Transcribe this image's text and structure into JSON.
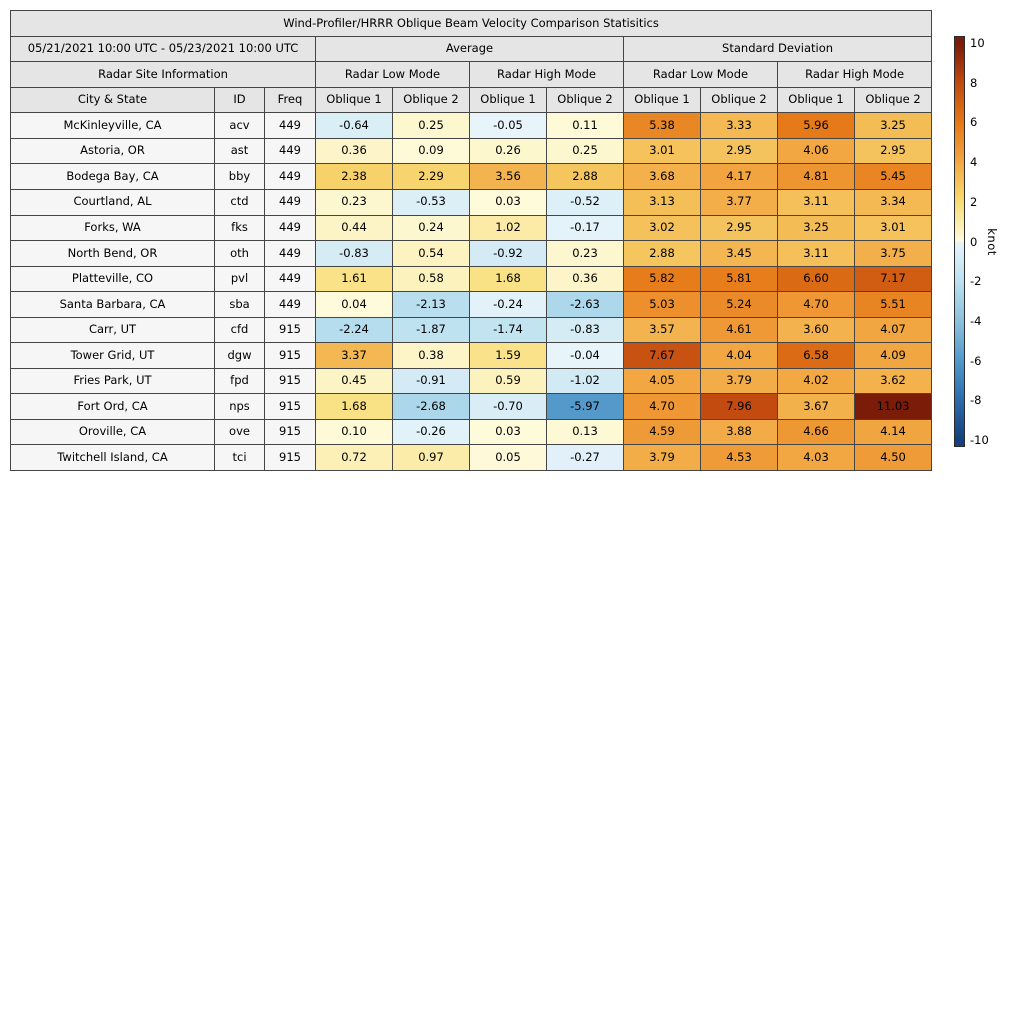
{
  "title": "Wind-Profiler/HRRR Oblique Beam Velocity Comparison Statisitics",
  "header": {
    "date_range": "05/21/2021 10:00 UTC - 05/23/2021 10:00 UTC",
    "group_average": "Average",
    "group_std": "Standard Deviation",
    "radar_site_info": "Radar Site Information",
    "mode_headers": [
      "Radar Low Mode",
      "Radar High Mode",
      "Radar Low Mode",
      "Radar High Mode"
    ],
    "col_headers": [
      "City & State",
      "ID",
      "Freq",
      "Oblique 1",
      "Oblique 2",
      "Oblique 1",
      "Oblique 2",
      "Oblique 1",
      "Oblique 2",
      "Oblique 1",
      "Oblique 2"
    ]
  },
  "chart_data": {
    "type": "heatmap",
    "title": "Wind-Profiler/HRRR Oblique Beam Velocity Comparison Statisitics",
    "unit": "knot",
    "value_range": [
      -10,
      10
    ],
    "value_columns": [
      "Average Radar Low Mode Oblique 1",
      "Average Radar Low Mode Oblique 2",
      "Average Radar High Mode Oblique 1",
      "Average Radar High Mode Oblique 2",
      "Standard Deviation Radar Low Mode Oblique 1",
      "Standard Deviation Radar Low Mode Oblique 2",
      "Standard Deviation Radar High Mode Oblique 1",
      "Standard Deviation Radar High Mode Oblique 2"
    ],
    "rows": [
      {
        "city": "McKinleyville, CA",
        "id": "acv",
        "freq": "449",
        "values": [
          "-0.64",
          "0.25",
          "-0.05",
          "0.11",
          "5.38",
          "3.33",
          "5.96",
          "3.25"
        ]
      },
      {
        "city": "Astoria, OR",
        "id": "ast",
        "freq": "449",
        "values": [
          "0.36",
          "0.09",
          "0.26",
          "0.25",
          "3.01",
          "2.95",
          "4.06",
          "2.95"
        ]
      },
      {
        "city": "Bodega Bay, CA",
        "id": "bby",
        "freq": "449",
        "values": [
          "2.38",
          "2.29",
          "3.56",
          "2.88",
          "3.68",
          "4.17",
          "4.81",
          "5.45"
        ]
      },
      {
        "city": "Courtland, AL",
        "id": "ctd",
        "freq": "449",
        "values": [
          "0.23",
          "-0.53",
          "0.03",
          "-0.52",
          "3.13",
          "3.77",
          "3.11",
          "3.34"
        ]
      },
      {
        "city": "Forks, WA",
        "id": "fks",
        "freq": "449",
        "values": [
          "0.44",
          "0.24",
          "1.02",
          "-0.17",
          "3.02",
          "2.95",
          "3.25",
          "3.01"
        ]
      },
      {
        "city": "North Bend, OR",
        "id": "oth",
        "freq": "449",
        "values": [
          "-0.83",
          "0.54",
          "-0.92",
          "0.23",
          "2.88",
          "3.45",
          "3.11",
          "3.75"
        ]
      },
      {
        "city": "Platteville, CO",
        "id": "pvl",
        "freq": "449",
        "values": [
          "1.61",
          "0.58",
          "1.68",
          "0.36",
          "5.82",
          "5.81",
          "6.60",
          "7.17"
        ]
      },
      {
        "city": "Santa Barbara, CA",
        "id": "sba",
        "freq": "449",
        "values": [
          "0.04",
          "-2.13",
          "-0.24",
          "-2.63",
          "5.03",
          "5.24",
          "4.70",
          "5.51"
        ]
      },
      {
        "city": "Carr, UT",
        "id": "cfd",
        "freq": "915",
        "values": [
          "-2.24",
          "-1.87",
          "-1.74",
          "-0.83",
          "3.57",
          "4.61",
          "3.60",
          "4.07"
        ]
      },
      {
        "city": "Tower Grid, UT",
        "id": "dgw",
        "freq": "915",
        "values": [
          "3.37",
          "0.38",
          "1.59",
          "-0.04",
          "7.67",
          "4.04",
          "6.58",
          "4.09"
        ]
      },
      {
        "city": "Fries Park, UT",
        "id": "fpd",
        "freq": "915",
        "values": [
          "0.45",
          "-0.91",
          "0.59",
          "-1.02",
          "4.05",
          "3.79",
          "4.02",
          "3.62"
        ]
      },
      {
        "city": "Fort Ord, CA",
        "id": "nps",
        "freq": "915",
        "values": [
          "1.68",
          "-2.68",
          "-0.70",
          "-5.97",
          "4.70",
          "7.96",
          "3.67",
          "11.03"
        ]
      },
      {
        "city": "Oroville, CA",
        "id": "ove",
        "freq": "915",
        "values": [
          "0.10",
          "-0.26",
          "0.03",
          "0.13",
          "4.59",
          "3.88",
          "4.66",
          "4.14"
        ]
      },
      {
        "city": "Twitchell Island, CA",
        "id": "tci",
        "freq": "915",
        "values": [
          "0.72",
          "0.97",
          "0.05",
          "-0.27",
          "3.79",
          "4.53",
          "4.03",
          "4.50"
        ]
      }
    ]
  },
  "colorbar": {
    "label": "knot",
    "ticks": [
      "10",
      "8",
      "6",
      "4",
      "2",
      "0",
      "-2",
      "-4",
      "-6",
      "-8",
      "-10"
    ],
    "tick_min": -10,
    "tick_max": 10,
    "bar_min": -10.35,
    "bar_max": 10.35,
    "cmap_warm": [
      [
        "0",
        "#FEFBDC"
      ],
      [
        "2",
        "#F8DC74"
      ],
      [
        "4",
        "#F2A843"
      ],
      [
        "6",
        "#E67817"
      ],
      [
        "8",
        "#C24A10"
      ],
      [
        "10",
        "#7A1C07"
      ]
    ],
    "cmap_cool": [
      [
        "0",
        "#E8F4FA"
      ],
      [
        "2",
        "#BCE1EF"
      ],
      [
        "4",
        "#8CC1DE"
      ],
      [
        "6",
        "#5299CB"
      ],
      [
        "8",
        "#2C6CAD"
      ],
      [
        "10",
        "#15417E"
      ]
    ]
  },
  "colors": {
    "header_bg": "#e5e5e5",
    "label_bg": "#f6f6f6",
    "border": "#454545",
    "background": "#ffffff"
  }
}
